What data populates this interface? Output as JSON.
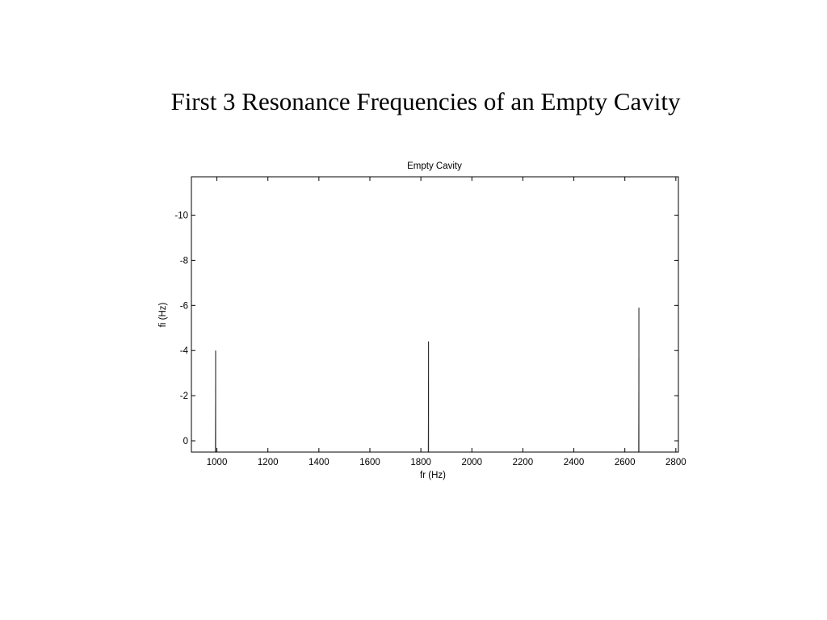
{
  "slide": {
    "title": "First 3 Resonance Frequencies of an Empty Cavity"
  },
  "chart_data": {
    "type": "line",
    "title": "Empty Cavity",
    "xlabel": "fr (Hz)",
    "ylabel": "fi (Hz)",
    "xlim": [
      900,
      2810
    ],
    "ylim": [
      0.5,
      -11.7
    ],
    "y_axis_reversed": true,
    "x_ticks": [
      1000,
      1200,
      1400,
      1600,
      1800,
      2000,
      2200,
      2400,
      2600,
      2800
    ],
    "y_ticks": [
      0,
      -2,
      -4,
      -6,
      -8,
      -10
    ],
    "grid": false,
    "legend": "none",
    "line_color": "#000000",
    "series": [
      {
        "peaks": [
          {
            "fr": 995,
            "fi_peak": -4.0
          },
          {
            "fr": 1830,
            "fi_peak": -4.4
          },
          {
            "fr": 2655,
            "fi_peak": -5.9
          }
        ]
      }
    ]
  }
}
